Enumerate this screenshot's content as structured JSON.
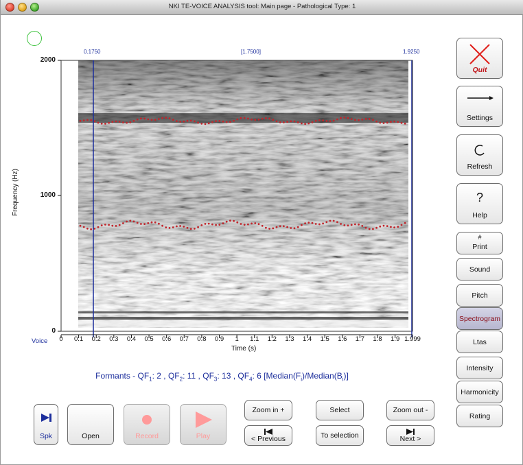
{
  "window": {
    "title": "NKI TE-VOICE ANALYSIS tool: Main page - Pathological Type: 1"
  },
  "selection": {
    "start": "0.1750",
    "duration": "[1.7500]",
    "end": "1.9250"
  },
  "plot": {
    "ylabel": "Frequency (Hz)",
    "xlabel": "Time (s)",
    "yticks": [
      "2000",
      "1000",
      "0"
    ],
    "xticks": [
      "0",
      "0.1",
      "0.2",
      "0.3",
      "0.4",
      "0.5",
      "0.6",
      "0.7",
      "0.8",
      "0.9",
      "1",
      "1.1",
      "1.2",
      "1.3",
      "1.4",
      "1.5",
      "1.6",
      "1.7",
      "1.8",
      "1.9",
      "1.999"
    ],
    "colors": {
      "selection_line": "#1c2e9c",
      "formant_dots": "#c0272d"
    }
  },
  "voice_label": "Voice",
  "formants": {
    "prefix": "Formants - ",
    "q1": "QF",
    "s1": "1",
    "v1": ": 2 , ",
    "q2": "QF",
    "s2": "2",
    "v2": ": 11 , ",
    "q3": "QF",
    "s3": "3",
    "v3": ": 13 , ",
    "q4": "QF",
    "s4": "4",
    "v4": ": 6 ",
    "median_open": "[Median(F",
    "i1": "i",
    "median_mid": ")/Median(B",
    "i2": "i",
    "median_close": ")]"
  },
  "side_buttons": {
    "quit": "Quit",
    "settings": "Settings",
    "refresh": "Refresh",
    "help_glyph": "?",
    "help": "Help",
    "print_glyph": "#",
    "print": "Print",
    "sound": "Sound",
    "pitch": "Pitch",
    "spectrogram": "Spectrogram",
    "ltas": "Ltas",
    "intensity": "Intensity",
    "harmonicity": "Harmonicity",
    "rating": "Rating"
  },
  "bottom_buttons": {
    "spk": "Spk",
    "open": "Open",
    "record": "Record",
    "play": "Play",
    "zoom_in": "Zoom in +",
    "previous": "< Previous",
    "select": "Select",
    "to_selection": "To selection",
    "zoom_out": "Zoom out -",
    "next": "Next >"
  }
}
